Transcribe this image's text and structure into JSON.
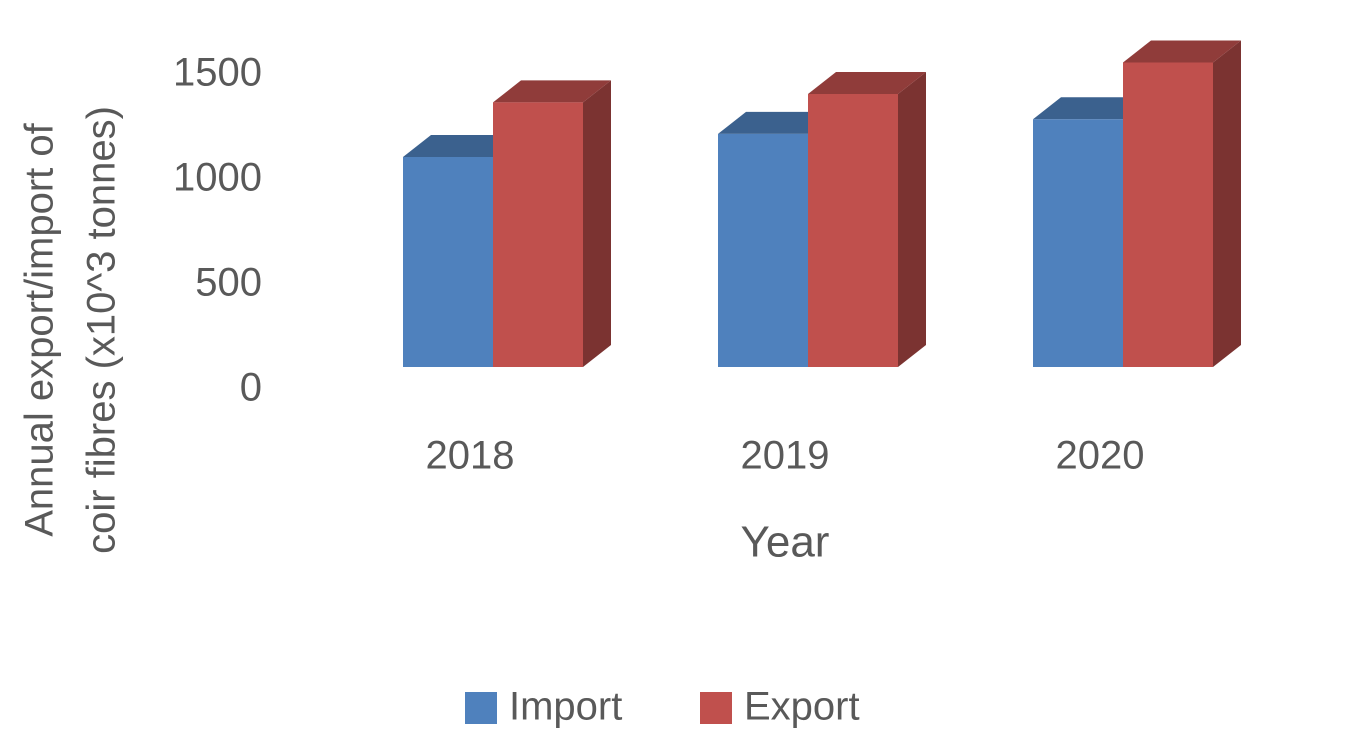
{
  "chart_data": {
    "type": "bar3d",
    "y_label": [
      "Annual export/import of",
      "coir fibres (x10^3 tonnes)"
    ],
    "x_label": "Year",
    "categories": [
      "2018",
      "2019",
      "2020"
    ],
    "series": [
      {
        "name": "Import",
        "color": "#4f81bd",
        "values": [
          1000,
          1110,
          1180
        ]
      },
      {
        "name": "Export",
        "color": "#c0504d",
        "values": [
          1260,
          1300,
          1450
        ]
      }
    ],
    "ylim": [
      0,
      1500
    ],
    "yticks": [
      0,
      500,
      1000,
      1500
    ]
  }
}
